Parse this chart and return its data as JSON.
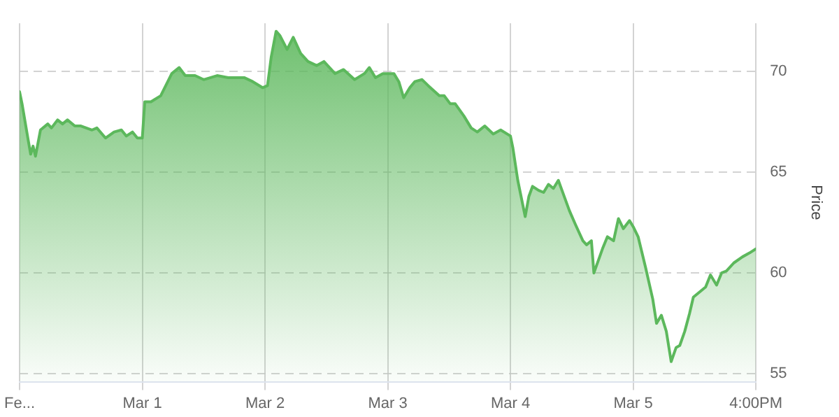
{
  "chart_data": {
    "type": "area",
    "ylabel": "Price",
    "x": [
      "--02-28T16:00",
      "--02-28T16:29",
      "--02-28T17:41",
      "--02-28T18:10",
      "--02-28T18:38",
      "--02-28T19:07",
      "--02-28T20:05",
      "--02-28T21:31",
      "--02-28T22:14",
      "--02-28T23:26",
      "--03-01T00:24",
      "--03-01T01:22",
      "--03-01T02:48",
      "--03-01T04:00",
      "--03-01T06:10",
      "--03-01T07:07",
      "--03-01T08:48",
      "--03-01T10:29",
      "--03-01T11:55",
      "--03-01T12:53",
      "--03-01T14:05",
      "--03-01T15:02",
      "--03-01T16:00",
      "--03-01T16:29",
      "--03-01T17:41",
      "--03-01T19:36",
      "--03-01T21:46",
      "--03-01T23:12",
      "--03-02T00:24",
      "--03-02T02:19",
      "--03-02T04:00",
      "--03-02T06:38",
      "--03-02T08:48",
      "--03-02T11:55",
      "--03-02T13:36",
      "--03-02T15:31",
      "--03-02T16:29",
      "--03-02T17:12",
      "--03-02T18:10",
      "--03-02T18:53",
      "--03-02T20:19",
      "--03-02T21:31",
      "--03-02T22:58",
      "--03-03T00:24",
      "--03-03T02:05",
      "--03-03T03:31",
      "--03-03T05:41",
      "--03-03T07:22",
      "--03-03T09:31",
      "--03-03T11:26",
      "--03-03T12:24",
      "--03-03T13:36",
      "--03-03T15:02",
      "--03-03T17:12",
      "--03-03T18:10",
      "--03-03T19:07",
      "--03-03T20:19",
      "--03-03T21:17",
      "--03-03T22:43",
      "--03-03T23:55",
      "--03-04T02:05",
      "--03-04T03:02",
      "--03-04T04:14",
      "--03-04T05:12",
      "--03-04T06:53",
      "--03-04T08:19",
      "--03-04T09:31",
      "--03-04T10:58",
      "--03-04T12:38",
      "--03-04T14:05",
      "--03-04T16:00",
      "--03-04T16:29",
      "--03-04T17:26",
      "--03-04T18:53",
      "--03-04T19:36",
      "--03-04T20:19",
      "--03-04T21:31",
      "--03-04T22:29",
      "--03-04T23:26",
      "--03-05T00:24",
      "--03-05T01:22",
      "--03-05T02:05",
      "--03-05T03:31",
      "--03-05T04:43",
      "--03-05T06:10",
      "--03-05T06:53",
      "--03-05T07:50",
      "--03-05T08:19",
      "--03-05T10:00",
      "--03-05T10:58",
      "--03-05T12:10",
      "--03-05T13:07",
      "--03-05T14:05",
      "--03-05T15:17",
      "--03-05T16:00",
      "--03-05T16:58",
      "--03-05T18:24",
      "--03-05T19:50",
      "--03-05T20:34",
      "--03-05T21:31",
      "--03-05T22:29",
      "--03-05T23:26",
      "--03-06T00:24",
      "--03-06T01:07",
      "--03-06T02:05",
      "--03-06T03:02",
      "--03-06T03:46",
      "--03-06T04:43",
      "--03-06T06:10",
      "--03-06T07:07",
      "--03-06T08:19",
      "--03-06T09:17",
      "--03-06T10:14",
      "--03-06T11:41",
      "--03-06T13:22",
      "--03-06T14:48",
      "--03-06T16:00"
    ],
    "series": [
      {
        "color": "#5cb85c",
        "values": [
          69.0,
          68.4,
          66.6,
          65.9,
          66.3,
          65.8,
          67.1,
          67.4,
          67.2,
          67.6,
          67.4,
          67.6,
          67.3,
          67.3,
          67.1,
          67.2,
          66.7,
          67.0,
          67.1,
          66.8,
          67.0,
          66.7,
          66.7,
          68.5,
          68.5,
          68.8,
          69.9,
          70.2,
          69.8,
          69.8,
          69.6,
          69.8,
          69.7,
          69.7,
          69.5,
          69.2,
          69.3,
          70.7,
          72.0,
          71.8,
          71.1,
          71.7,
          70.9,
          70.5,
          70.3,
          70.5,
          69.9,
          70.1,
          69.6,
          69.9,
          70.2,
          69.7,
          69.9,
          69.9,
          69.5,
          68.7,
          69.2,
          69.5,
          69.6,
          69.3,
          68.8,
          68.8,
          68.4,
          68.4,
          67.8,
          67.2,
          67.0,
          67.3,
          66.9,
          67.1,
          66.8,
          66.2,
          64.6,
          62.8,
          63.8,
          64.3,
          64.1,
          64.0,
          64.4,
          64.2,
          64.6,
          64.1,
          63.1,
          62.4,
          61.6,
          61.4,
          61.6,
          60.0,
          61.2,
          61.8,
          61.6,
          62.7,
          62.2,
          62.6,
          62.3,
          61.8,
          60.3,
          58.7,
          57.5,
          57.9,
          57.1,
          55.6,
          56.3,
          56.4,
          57.1,
          58.0,
          58.8,
          59.0,
          59.3,
          59.9,
          59.4,
          60.0,
          60.1,
          60.5,
          60.8,
          61.0,
          61.2
        ]
      }
    ],
    "xlim": [
      "--02-28T16:00",
      "--03-06T16:00"
    ],
    "xticks": [
      {
        "value": "--02-28T16:00",
        "label": "Fe..."
      },
      {
        "value": "--03-01T16:00",
        "label": "Mar 1"
      },
      {
        "value": "--03-02T16:00",
        "label": "Mar 2"
      },
      {
        "value": "--03-03T16:00",
        "label": "Mar 3"
      },
      {
        "value": "--03-04T16:00",
        "label": "Mar 4"
      },
      {
        "value": "--03-05T16:00",
        "label": "Mar 5"
      },
      {
        "value": "--03-06T16:00",
        "label": "4:00PM"
      }
    ],
    "ylim": [
      54.6,
      72.4
    ],
    "yticks": [
      55,
      60,
      65,
      70
    ],
    "grid": true,
    "legend": false,
    "marker": "none",
    "line_style": "solid"
  }
}
